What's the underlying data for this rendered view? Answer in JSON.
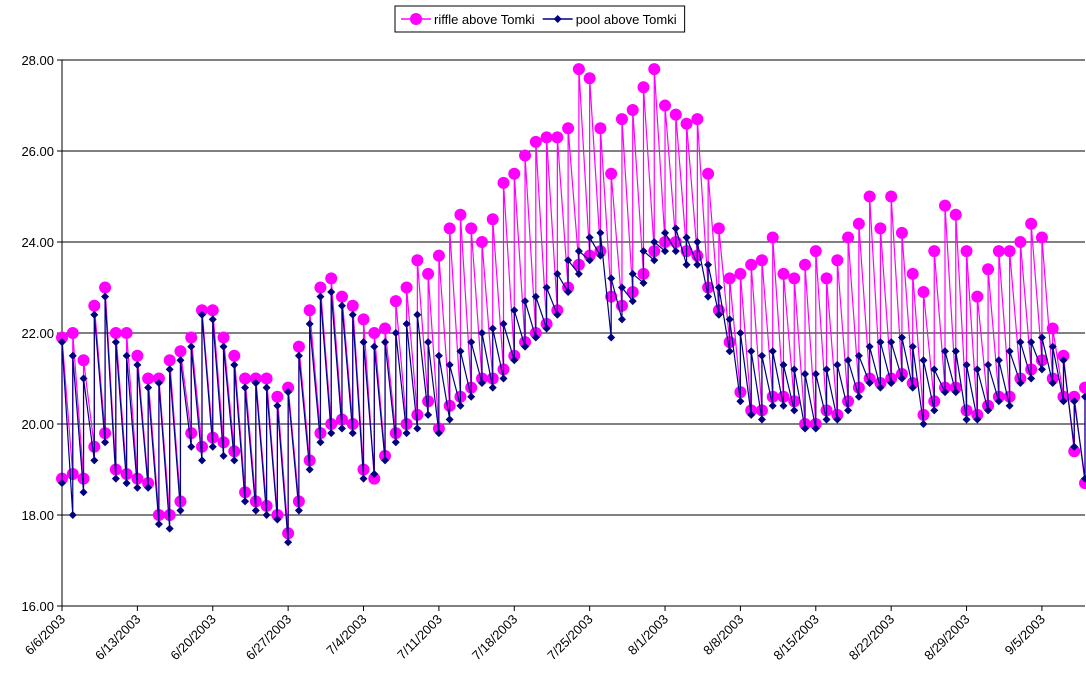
{
  "chart_data": {
    "type": "line",
    "x": [
      "6/6/2003",
      "6/6/2003",
      "6/7/2003",
      "6/7/2003",
      "6/8/2003",
      "6/8/2003",
      "6/9/2003",
      "6/9/2003",
      "6/10/2003",
      "6/10/2003",
      "6/11/2003",
      "6/11/2003",
      "6/12/2003",
      "6/12/2003",
      "6/13/2003",
      "6/13/2003",
      "6/14/2003",
      "6/14/2003",
      "6/15/2003",
      "6/15/2003",
      "6/16/2003",
      "6/16/2003",
      "6/17/2003",
      "6/17/2003",
      "6/18/2003",
      "6/18/2003",
      "6/19/2003",
      "6/19/2003",
      "6/20/2003",
      "6/20/2003",
      "6/21/2003",
      "6/21/2003",
      "6/22/2003",
      "6/22/2003",
      "6/23/2003",
      "6/23/2003",
      "6/24/2003",
      "6/24/2003",
      "6/25/2003",
      "6/25/2003",
      "6/26/2003",
      "6/26/2003",
      "6/27/2003",
      "6/27/2003",
      "6/28/2003",
      "6/28/2003",
      "6/29/2003",
      "6/29/2003",
      "6/30/2003",
      "6/30/2003",
      "7/1/2003",
      "7/1/2003",
      "7/2/2003",
      "7/2/2003",
      "7/3/2003",
      "7/3/2003",
      "7/4/2003",
      "7/4/2003",
      "7/5/2003",
      "7/5/2003",
      "7/6/2003",
      "7/6/2003",
      "7/7/2003",
      "7/7/2003",
      "7/8/2003",
      "7/8/2003",
      "7/9/2003",
      "7/9/2003",
      "7/10/2003",
      "7/10/2003",
      "7/11/2003",
      "7/11/2003",
      "7/12/2003",
      "7/12/2003",
      "7/13/2003",
      "7/13/2003",
      "7/14/2003",
      "7/14/2003",
      "7/15/2003",
      "7/15/2003",
      "7/16/2003",
      "7/16/2003",
      "7/17/2003",
      "7/17/2003",
      "7/18/2003",
      "7/18/2003",
      "7/19/2003",
      "7/19/2003",
      "7/20/2003",
      "7/20/2003",
      "7/21/2003",
      "7/21/2003",
      "7/22/2003",
      "7/22/2003",
      "7/23/2003",
      "7/23/2003",
      "7/24/2003",
      "7/24/2003",
      "7/25/2003",
      "7/25/2003",
      "7/26/2003",
      "7/26/2003",
      "7/27/2003",
      "7/27/2003",
      "7/28/2003",
      "7/28/2003",
      "7/29/2003",
      "7/29/2003",
      "7/30/2003",
      "7/30/2003",
      "7/31/2003",
      "7/31/2003",
      "8/1/2003",
      "8/1/2003",
      "8/2/2003",
      "8/2/2003",
      "8/3/2003",
      "8/3/2003",
      "8/4/2003",
      "8/4/2003",
      "8/5/2003",
      "8/5/2003",
      "8/6/2003",
      "8/6/2003",
      "8/7/2003",
      "8/7/2003",
      "8/8/2003",
      "8/8/2003",
      "8/9/2003",
      "8/9/2003",
      "8/10/2003",
      "8/10/2003",
      "8/11/2003",
      "8/11/2003",
      "8/12/2003",
      "8/12/2003",
      "8/13/2003",
      "8/13/2003",
      "8/14/2003",
      "8/14/2003",
      "8/15/2003",
      "8/15/2003",
      "8/16/2003",
      "8/16/2003",
      "8/17/2003",
      "8/17/2003",
      "8/18/2003",
      "8/18/2003",
      "8/19/2003",
      "8/19/2003",
      "8/20/2003",
      "8/20/2003",
      "8/21/2003",
      "8/21/2003",
      "8/22/2003",
      "8/22/2003",
      "8/23/2003",
      "8/23/2003",
      "8/24/2003",
      "8/24/2003",
      "8/25/2003",
      "8/25/2003",
      "8/26/2003",
      "8/26/2003",
      "8/27/2003",
      "8/27/2003",
      "8/28/2003",
      "8/28/2003",
      "8/29/2003",
      "8/29/2003",
      "8/30/2003",
      "8/30/2003",
      "8/31/2003",
      "8/31/2003",
      "9/1/2003",
      "9/1/2003",
      "9/2/2003",
      "9/2/2003",
      "9/3/2003",
      "9/3/2003",
      "9/4/2003",
      "9/4/2003",
      "9/5/2003",
      "9/5/2003",
      "9/6/2003",
      "9/6/2003",
      "9/7/2003",
      "9/7/2003",
      "9/8/2003",
      "9/8/2003",
      "9/9/2003",
      "9/9/2003"
    ],
    "series": [
      {
        "name": "riffle above Tomki",
        "color": "#ff00ff",
        "marker": "circle",
        "values": [
          18.8,
          21.9,
          18.9,
          22.0,
          18.8,
          21.4,
          19.5,
          22.6,
          19.8,
          23.0,
          19.0,
          22.0,
          18.9,
          22.0,
          18.8,
          21.5,
          18.7,
          21.0,
          18.0,
          21.0,
          18.0,
          21.4,
          18.3,
          21.6,
          19.8,
          21.9,
          19.5,
          22.5,
          19.7,
          22.5,
          19.6,
          21.9,
          19.4,
          21.5,
          18.5,
          21.0,
          18.3,
          21.0,
          18.2,
          21.0,
          18.0,
          20.6,
          17.6,
          20.8,
          18.3,
          21.7,
          19.2,
          22.5,
          19.8,
          23.0,
          20.0,
          23.2,
          20.1,
          22.8,
          20.0,
          22.6,
          19.0,
          22.3,
          18.8,
          22.0,
          19.3,
          22.1,
          19.8,
          22.7,
          20.0,
          23.0,
          20.2,
          23.6,
          20.5,
          23.3,
          19.9,
          23.7,
          20.4,
          24.3,
          20.6,
          24.6,
          20.8,
          24.3,
          21.0,
          24.0,
          21.0,
          24.5,
          21.2,
          25.3,
          21.5,
          25.5,
          21.8,
          25.9,
          22.0,
          26.2,
          22.2,
          26.3,
          22.5,
          26.3,
          23.0,
          26.5,
          23.5,
          27.8,
          23.7,
          27.6,
          23.8,
          26.5,
          22.8,
          25.5,
          22.6,
          26.7,
          22.9,
          26.9,
          23.3,
          27.4,
          23.8,
          27.8,
          24.0,
          27.0,
          24.0,
          26.8,
          23.8,
          26.6,
          23.7,
          26.7,
          23.0,
          25.5,
          22.5,
          24.3,
          21.8,
          23.2,
          20.7,
          23.3,
          20.3,
          23.5,
          20.3,
          23.6,
          20.6,
          24.1,
          20.6,
          23.3,
          20.5,
          23.2,
          20.0,
          23.5,
          20.0,
          23.8,
          20.3,
          23.2,
          20.2,
          23.6,
          20.5,
          24.1,
          20.8,
          24.4,
          21.0,
          25.0,
          20.9,
          24.3,
          21.0,
          25.0,
          21.1,
          24.2,
          20.9,
          23.3,
          20.2,
          22.9,
          20.5,
          23.8,
          20.8,
          24.8,
          20.8,
          24.6,
          20.3,
          23.8,
          20.2,
          22.8,
          20.4,
          23.4,
          20.6,
          23.8,
          20.6,
          23.8,
          21.0,
          24.0,
          21.2,
          24.4,
          21.4,
          24.1,
          21.0,
          22.1,
          20.6,
          21.5,
          19.4,
          20.6,
          18.7,
          20.8
        ]
      },
      {
        "name": "pool above Tomki",
        "color": "#000080",
        "marker": "diamond",
        "values": [
          18.7,
          21.8,
          18.0,
          21.5,
          18.5,
          21.0,
          19.2,
          22.4,
          19.6,
          22.8,
          18.8,
          21.8,
          18.7,
          21.5,
          18.6,
          21.3,
          18.6,
          20.8,
          17.8,
          20.9,
          17.7,
          21.2,
          18.1,
          21.4,
          19.5,
          21.7,
          19.2,
          22.4,
          19.5,
          22.3,
          19.3,
          21.7,
          19.2,
          21.3,
          18.3,
          20.8,
          18.1,
          20.9,
          18.0,
          20.8,
          17.9,
          20.4,
          17.4,
          20.7,
          18.1,
          21.5,
          19.0,
          22.2,
          19.6,
          22.8,
          19.8,
          22.9,
          19.9,
          22.6,
          19.8,
          22.4,
          18.8,
          21.8,
          18.9,
          21.7,
          19.2,
          21.8,
          19.6,
          22.0,
          19.8,
          22.2,
          19.9,
          22.4,
          20.2,
          21.8,
          19.8,
          21.5,
          20.1,
          21.3,
          20.4,
          21.6,
          20.6,
          21.8,
          20.9,
          22.0,
          20.8,
          22.1,
          21.0,
          22.2,
          21.4,
          22.5,
          21.7,
          22.7,
          21.9,
          22.8,
          22.1,
          23.0,
          22.4,
          23.3,
          22.9,
          23.6,
          23.3,
          23.8,
          23.6,
          24.1,
          23.7,
          24.2,
          21.9,
          23.2,
          22.3,
          23.0,
          22.7,
          23.3,
          23.1,
          23.8,
          23.6,
          24.0,
          23.8,
          24.2,
          23.8,
          24.3,
          23.5,
          24.1,
          23.5,
          24.0,
          22.8,
          23.5,
          22.4,
          23.0,
          21.6,
          22.3,
          20.5,
          22.0,
          20.2,
          21.6,
          20.1,
          21.5,
          20.4,
          21.6,
          20.4,
          21.3,
          20.3,
          21.2,
          19.9,
          21.1,
          19.9,
          21.1,
          20.1,
          21.2,
          20.1,
          21.3,
          20.3,
          21.4,
          20.6,
          21.5,
          20.9,
          21.7,
          20.8,
          21.8,
          20.9,
          21.8,
          21.0,
          21.9,
          20.8,
          21.7,
          20.0,
          21.4,
          20.3,
          21.2,
          20.7,
          21.6,
          20.7,
          21.6,
          20.1,
          21.3,
          20.1,
          21.2,
          20.3,
          21.3,
          20.5,
          21.4,
          20.4,
          21.6,
          20.9,
          21.8,
          21.0,
          21.8,
          21.2,
          21.9,
          20.9,
          21.7,
          20.5,
          21.4,
          19.5,
          20.5,
          18.8,
          20.6
        ]
      }
    ],
    "xlim": [
      "6/6/2003",
      "9/9/2003"
    ],
    "xticks": [
      "6/6/2003",
      "6/13/2003",
      "6/20/2003",
      "6/27/2003",
      "7/4/2003",
      "7/11/2003",
      "7/18/2003",
      "7/25/2003",
      "8/1/2003",
      "8/8/2003",
      "8/15/2003",
      "8/22/2003",
      "8/29/2003",
      "9/5/2003"
    ],
    "ylim": [
      16,
      28
    ],
    "yticks": [
      {
        "value": 16,
        "label": "16.00"
      },
      {
        "value": 18,
        "label": "18.00"
      },
      {
        "value": 20,
        "label": "20.00"
      },
      {
        "value": 22,
        "label": "22.00"
      },
      {
        "value": 24,
        "label": "24.00"
      },
      {
        "value": 26,
        "label": "26.00"
      },
      {
        "value": 28,
        "label": "28.00"
      }
    ],
    "grid": true,
    "legend": "top"
  }
}
